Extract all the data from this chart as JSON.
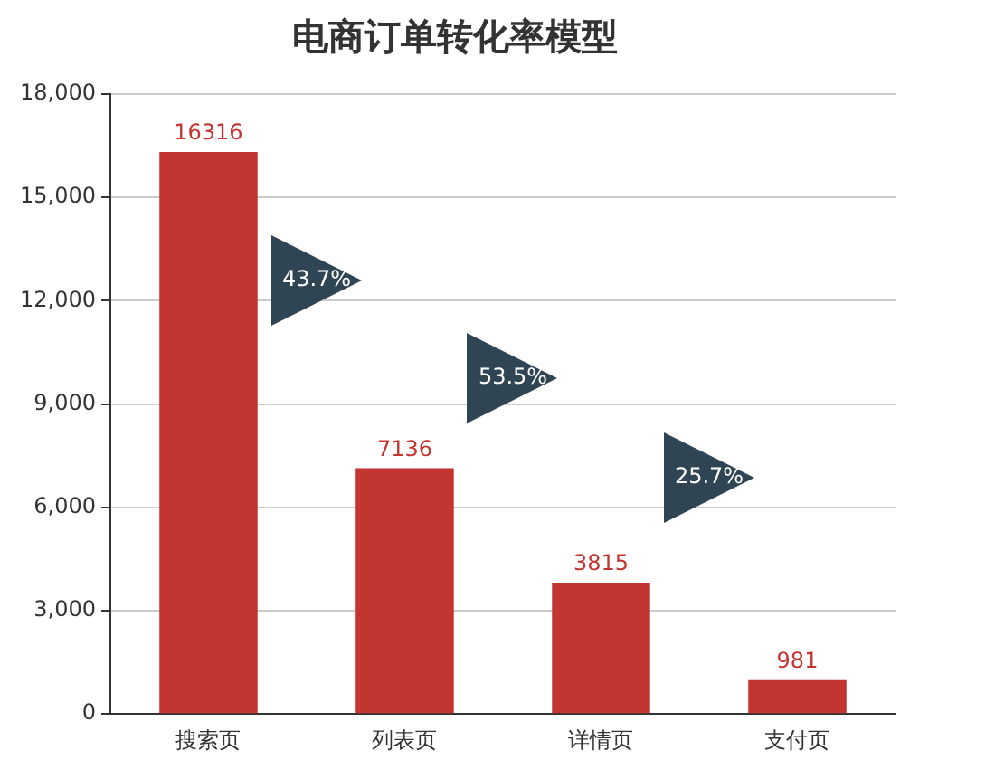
{
  "chart_data": {
    "type": "bar",
    "title": "电商订单转化率模型",
    "categories": [
      "搜索页",
      "列表页",
      "详情页",
      "支付页"
    ],
    "values": [
      16316,
      7136,
      3815,
      981
    ],
    "color": "#c23531",
    "ylim": [
      0,
      18000
    ],
    "yticks": [
      {
        "value": 0,
        "label": "0"
      },
      {
        "value": 3000,
        "label": "3,000"
      },
      {
        "value": 6000,
        "label": "6,000"
      },
      {
        "value": 9000,
        "label": "9,000"
      },
      {
        "value": 12000,
        "label": "12,000"
      },
      {
        "value": 15000,
        "label": "15,000"
      },
      {
        "value": 18000,
        "label": "18,000"
      }
    ],
    "grid": "y",
    "data_labels": true,
    "annotations": [
      "43.7%",
      "53.5%",
      "25.7%"
    ]
  }
}
